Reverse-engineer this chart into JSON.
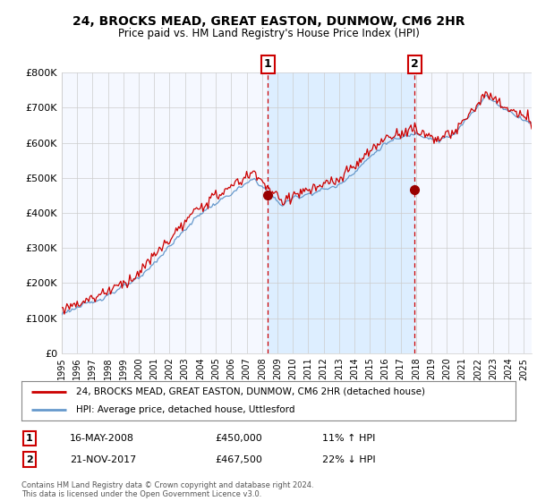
{
  "title": "24, BROCKS MEAD, GREAT EASTON, DUNMOW, CM6 2HR",
  "subtitle": "Price paid vs. HM Land Registry's House Price Index (HPI)",
  "ylabel_ticks": [
    "£0",
    "£100K",
    "£200K",
    "£300K",
    "£400K",
    "£500K",
    "£600K",
    "£700K",
    "£800K"
  ],
  "ylim": [
    0,
    800000
  ],
  "xlim_start": 1995.0,
  "xlim_end": 2025.5,
  "sale1_x": 2008.37,
  "sale1_y": 450000,
  "sale1_label": "1",
  "sale2_x": 2017.89,
  "sale2_y": 467500,
  "sale2_label": "2",
  "legend_line1": "24, BROCKS MEAD, GREAT EASTON, DUNMOW, CM6 2HR (detached house)",
  "legend_line2": "HPI: Average price, detached house, Uttlesford",
  "table_row1_num": "1",
  "table_row1_date": "16-MAY-2008",
  "table_row1_price": "£450,000",
  "table_row1_hpi": "11% ↑ HPI",
  "table_row2_num": "2",
  "table_row2_date": "21-NOV-2017",
  "table_row2_price": "£467,500",
  "table_row2_hpi": "22% ↓ HPI",
  "footer": "Contains HM Land Registry data © Crown copyright and database right 2024.\nThis data is licensed under the Open Government Licence v3.0.",
  "property_color": "#cc0000",
  "hpi_color": "#6699cc",
  "hpi_fill_color": "#ddeeff",
  "shade_color": "#ddeeff",
  "background_color": "#ffffff",
  "plot_bg_color": "#f5f8ff",
  "grid_color": "#cccccc"
}
